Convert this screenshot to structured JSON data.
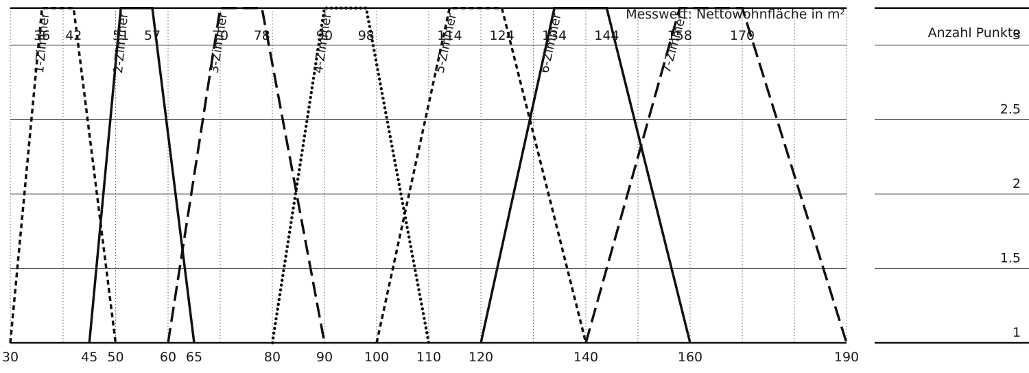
{
  "chart_data": {
    "type": "line",
    "title": "",
    "xlabel": "Messwert: Nettowohnfläche in m²",
    "ylabel": "Anzahl Punkte",
    "x_tick_labels_bottom": [
      "30",
      "45",
      "50",
      "60",
      "65",
      "80",
      "90",
      "100",
      "110",
      "120",
      "140",
      "160",
      "190"
    ],
    "x_tick_labels_top": [
      "36",
      "42",
      "51",
      "57",
      "70",
      "78",
      "90",
      "98",
      "114",
      "124",
      "134",
      "144",
      "158",
      "170"
    ],
    "y_tick_labels": [
      "3",
      "2.5",
      "2",
      "1.5",
      "1"
    ],
    "y_range_top_edge": 3.25,
    "series": [
      {
        "name": "1-Zimmer",
        "style": "dashed-short",
        "x": [
          30,
          36,
          42,
          50
        ],
        "y": [
          1,
          3.25,
          3.25,
          1
        ]
      },
      {
        "name": "2-Zimmer",
        "style": "solid",
        "x": [
          45,
          51,
          57,
          65
        ],
        "y": [
          1,
          3.25,
          3.25,
          1
        ]
      },
      {
        "name": "3-Zimmer",
        "style": "dashed-long",
        "x": [
          60,
          70,
          78,
          90
        ],
        "y": [
          1,
          3.25,
          3.25,
          1
        ]
      },
      {
        "name": "4-Zimmer",
        "style": "dotted",
        "x": [
          80,
          90,
          98,
          110
        ],
        "y": [
          1,
          3.25,
          3.25,
          1
        ]
      },
      {
        "name": "5-Zimmer",
        "style": "dashed-short",
        "x": [
          100,
          114,
          124,
          140
        ],
        "y": [
          1,
          3.25,
          3.25,
          1
        ]
      },
      {
        "name": "6-Zimmer",
        "style": "solid",
        "x": [
          120,
          134,
          144,
          160
        ],
        "y": [
          1,
          3.25,
          3.25,
          1
        ]
      },
      {
        "name": "7-Zimmer",
        "style": "dashed-long",
        "x": [
          140,
          158,
          170,
          190
        ],
        "y": [
          1,
          3.25,
          3.25,
          1
        ]
      }
    ],
    "grid": true,
    "legend": "none"
  },
  "colors": {
    "line": "#111111",
    "grid": "#555555"
  }
}
